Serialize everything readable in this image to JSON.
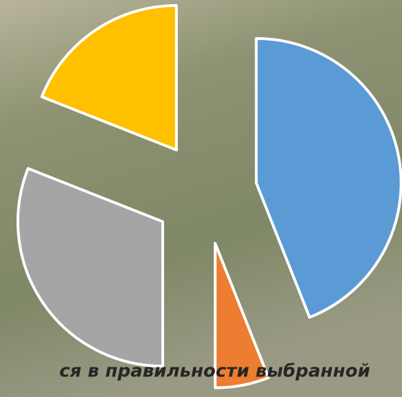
{
  "chart_data": {
    "type": "pie",
    "title": "ся в правильности выбранной",
    "values": [
      44,
      6,
      31,
      19
    ],
    "colors": [
      "#5b9bd5",
      "#ed7d31",
      "#a5a5a5",
      "#ffc000"
    ],
    "exploded": true
  }
}
